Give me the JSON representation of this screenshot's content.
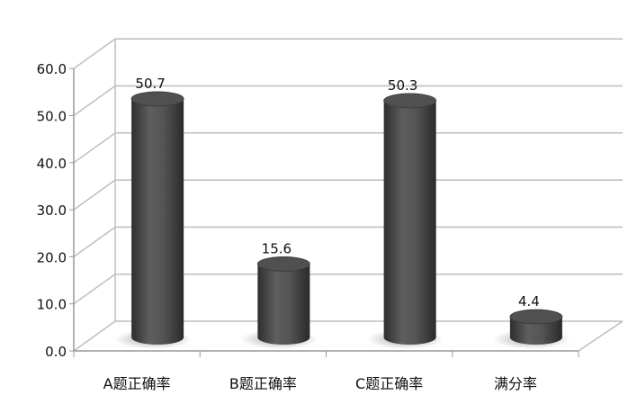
{
  "chart_data": {
    "type": "bar",
    "style": "3d-cylinder",
    "categories": [
      "A题正确率",
      "B题正确率",
      "C题正确率",
      "满分率"
    ],
    "values": [
      50.7,
      15.6,
      50.3,
      4.4
    ],
    "data_labels": [
      "50.7",
      "15.6",
      "50.3",
      "4.4"
    ],
    "yticks": [
      "0.0",
      "10.0",
      "20.0",
      "30.0",
      "40.0",
      "50.0",
      "60.0"
    ],
    "ylim": [
      0,
      60
    ],
    "grid": true,
    "legend": "none",
    "title": "",
    "xlabel": "",
    "ylabel": "",
    "colors": {
      "bar": "#4a4a4a",
      "grid": "#bdbdbd"
    }
  }
}
